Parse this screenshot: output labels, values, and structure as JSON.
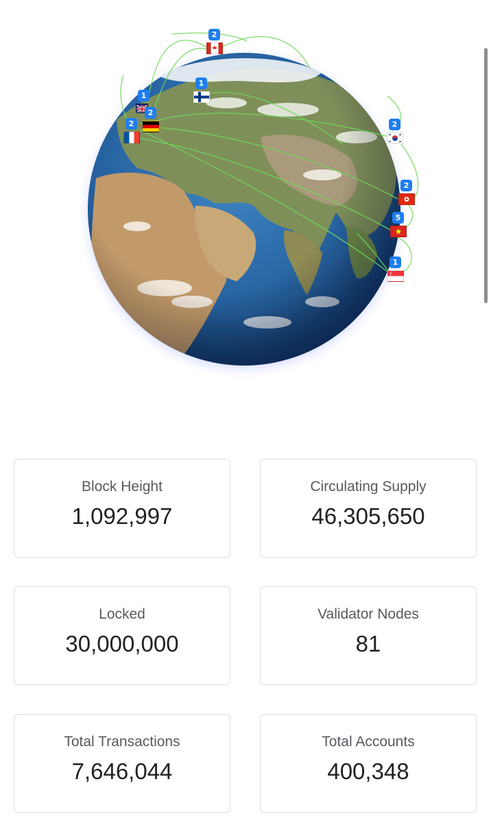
{
  "globe": {
    "markers": [
      {
        "count": "2",
        "country": "canada",
        "flag_colors": [
          "#d52b1e",
          "#ffffff",
          "#d52b1e"
        ]
      },
      {
        "count": "1",
        "country": "finland",
        "flag_colors": [
          "#ffffff",
          "#003580"
        ]
      },
      {
        "count": "1",
        "country": "united-kingdom",
        "flag_colors": [
          "#012169",
          "#c8102e",
          "#ffffff"
        ]
      },
      {
        "count": "2",
        "country": "germany",
        "flag_colors": [
          "#000000",
          "#dd0000",
          "#ffce00"
        ]
      },
      {
        "count": "2",
        "country": "france",
        "flag_colors": [
          "#0055a4",
          "#ffffff",
          "#ef4135"
        ]
      },
      {
        "count": "2",
        "country": "south-korea",
        "flag_colors": [
          "#ffffff",
          "#cd2e3a",
          "#0047a0"
        ]
      },
      {
        "count": "2",
        "country": "hong-kong",
        "flag_colors": [
          "#de2910",
          "#ffffff"
        ]
      },
      {
        "count": "5",
        "country": "vietnam",
        "flag_colors": [
          "#da251d",
          "#ffff00"
        ]
      },
      {
        "count": "1",
        "country": "singapore",
        "flag_colors": [
          "#ef3340",
          "#ffffff"
        ]
      }
    ],
    "arc_color": "#6fdc5a",
    "glow_color": "#b9c4ff"
  },
  "stats": [
    {
      "label": "Block Height",
      "value": "1,092,997"
    },
    {
      "label": "Circulating Supply",
      "value": "46,305,650"
    },
    {
      "label": "Locked",
      "value": "30,000,000"
    },
    {
      "label": "Validator Nodes",
      "value": "81"
    },
    {
      "label": "Total Transactions",
      "value": "7,646,044"
    },
    {
      "label": "Total Accounts",
      "value": "400,348"
    }
  ]
}
